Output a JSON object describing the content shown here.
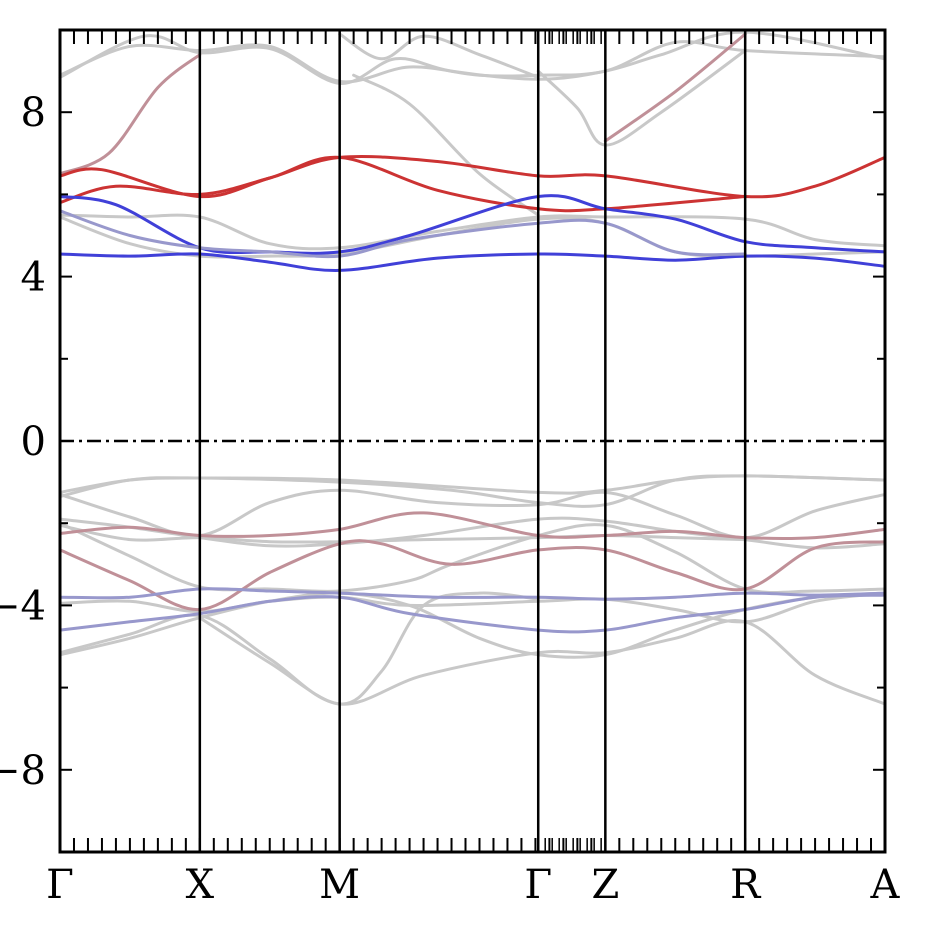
{
  "chart_data": {
    "type": "line",
    "title": "",
    "xlabel": "",
    "ylabel": "",
    "ylim": [
      -10,
      10
    ],
    "xlim": [
      0,
      5.9
    ],
    "y_ticks": [
      -8,
      -4,
      0,
      4,
      8
    ],
    "y_tick_labels": [
      "−8",
      "−4",
      "0",
      "4",
      "8"
    ],
    "high_symmetry_points": [
      {
        "label": "Γ",
        "k": 0.0
      },
      {
        "label": "X",
        "k": 1.0
      },
      {
        "label": "M",
        "k": 2.0
      },
      {
        "label": "Γ",
        "k": 3.42
      },
      {
        "label": "Z",
        "k": 3.9
      },
      {
        "label": "R",
        "k": 4.9
      },
      {
        "label": "A",
        "k": 5.9
      }
    ],
    "fermi_level": 0,
    "colors": {
      "neutral": "#c8c8c8",
      "red": "#cc3333",
      "blue": "#4040d8",
      "pink": "#c09098",
      "lavender": "#9898cc"
    },
    "series": [
      {
        "color": "#c8c8c8",
        "points": [
          [
            0,
            8.9
          ],
          [
            0.5,
            9.6
          ],
          [
            1,
            9.5
          ],
          [
            1.5,
            9.6
          ],
          [
            2,
            8.75
          ],
          [
            2.5,
            9.1
          ],
          [
            3.0,
            8.9
          ],
          [
            3.42,
            8.9
          ],
          [
            3.9,
            9.0
          ],
          [
            4.4,
            9.7
          ],
          [
            4.9,
            9.5
          ],
          [
            5.9,
            9.35
          ]
        ]
      },
      {
        "color": "#c8c8c8",
        "points": [
          [
            0,
            8.85
          ],
          [
            0.6,
            9.85
          ],
          [
            1,
            9.45
          ],
          [
            1.5,
            9.55
          ],
          [
            2,
            8.7
          ],
          [
            2.4,
            9.3
          ],
          [
            2.8,
            9.0
          ],
          [
            3.42,
            8.8
          ],
          [
            3.9,
            9.0
          ],
          [
            4.3,
            9.4
          ],
          [
            4.9,
            9.95
          ],
          [
            5.9,
            9.3
          ]
        ]
      },
      {
        "color": "#c8c8c8",
        "points": [
          [
            2,
            9.9
          ],
          [
            2.3,
            9.3
          ],
          [
            2.6,
            9.85
          ],
          [
            3.0,
            9.4
          ],
          [
            3.42,
            8.85
          ]
        ]
      },
      {
        "color": "#c8c8c8",
        "points": [
          [
            2.1,
            8.9
          ],
          [
            2.5,
            8.2
          ],
          [
            3.0,
            6.5
          ],
          [
            3.42,
            5.5
          ]
        ]
      },
      {
        "color": "#c8c8c8",
        "points": [
          [
            3.42,
            9.0
          ],
          [
            3.7,
            8.1
          ],
          [
            3.9,
            7.2
          ],
          [
            4.3,
            8.0
          ],
          [
            4.9,
            9.5
          ]
        ]
      },
      {
        "color": "#c09098",
        "points": [
          [
            0,
            6.5
          ],
          [
            0.35,
            7.0
          ],
          [
            0.7,
            8.6
          ],
          [
            1.0,
            9.4
          ]
        ]
      },
      {
        "color": "#c09098",
        "points": [
          [
            3.9,
            7.3
          ],
          [
            4.4,
            8.5
          ],
          [
            4.9,
            9.9
          ]
        ]
      },
      {
        "color": "#cc3333",
        "points": [
          [
            0,
            6.45
          ],
          [
            0.3,
            6.6
          ],
          [
            1,
            5.95
          ],
          [
            1.5,
            6.4
          ],
          [
            2,
            6.9
          ],
          [
            2.7,
            6.8
          ],
          [
            3.42,
            6.45
          ],
          [
            3.9,
            6.45
          ],
          [
            4.9,
            5.95
          ],
          [
            5.4,
            6.2
          ],
          [
            5.9,
            6.9
          ]
        ]
      },
      {
        "color": "#cc3333",
        "points": [
          [
            0,
            5.8
          ],
          [
            0.4,
            6.2
          ],
          [
            1,
            6.0
          ],
          [
            1.5,
            6.4
          ],
          [
            2,
            6.9
          ],
          [
            2.7,
            6.1
          ],
          [
            3.42,
            5.65
          ],
          [
            3.9,
            5.65
          ],
          [
            4.9,
            5.95
          ]
        ]
      },
      {
        "color": "#4040d8",
        "points": [
          [
            0,
            5.95
          ],
          [
            0.4,
            5.75
          ],
          [
            1,
            4.7
          ],
          [
            1.5,
            4.6
          ],
          [
            2,
            4.6
          ],
          [
            2.5,
            5.0
          ],
          [
            3.42,
            5.95
          ],
          [
            3.9,
            5.65
          ],
          [
            4.4,
            5.4
          ],
          [
            4.9,
            4.85
          ],
          [
            5.4,
            4.7
          ],
          [
            5.9,
            4.6
          ]
        ]
      },
      {
        "color": "#4040d8",
        "points": [
          [
            0,
            4.55
          ],
          [
            0.5,
            4.5
          ],
          [
            1,
            4.55
          ],
          [
            1.5,
            4.35
          ],
          [
            2,
            4.15
          ],
          [
            2.7,
            4.45
          ],
          [
            3.42,
            4.55
          ],
          [
            3.9,
            4.5
          ],
          [
            4.4,
            4.4
          ],
          [
            4.9,
            4.5
          ],
          [
            5.4,
            4.45
          ],
          [
            5.9,
            4.25
          ]
        ]
      },
      {
        "color": "#c8c8c8",
        "points": [
          [
            0,
            5.5
          ],
          [
            0.5,
            5.45
          ],
          [
            1,
            5.45
          ],
          [
            1.5,
            4.8
          ],
          [
            2,
            4.7
          ],
          [
            2.7,
            5.1
          ],
          [
            3.42,
            5.45
          ],
          [
            3.9,
            5.45
          ],
          [
            4.9,
            5.4
          ],
          [
            5.4,
            4.9
          ],
          [
            5.9,
            4.75
          ]
        ]
      },
      {
        "color": "#c8c8c8",
        "points": [
          [
            0,
            5.45
          ],
          [
            0.5,
            4.8
          ],
          [
            1,
            4.5
          ],
          [
            1.5,
            4.5
          ],
          [
            2,
            4.55
          ],
          [
            2.7,
            5.0
          ],
          [
            3.42,
            5.4
          ],
          [
            3.9,
            5.3
          ],
          [
            4.4,
            4.6
          ],
          [
            4.9,
            4.5
          ],
          [
            5.4,
            4.55
          ],
          [
            5.9,
            4.6
          ]
        ]
      },
      {
        "color": "#9898cc",
        "points": [
          [
            0,
            5.6
          ],
          [
            0.5,
            5.0
          ],
          [
            1,
            4.7
          ],
          [
            1.5,
            4.6
          ],
          [
            2,
            4.5
          ],
          [
            2.5,
            4.9
          ],
          [
            3.42,
            5.3
          ],
          [
            3.9,
            5.3
          ],
          [
            4.4,
            4.6
          ],
          [
            4.9,
            4.55
          ]
        ]
      },
      {
        "color": "#c8c8c8",
        "points": [
          [
            0,
            -1.25
          ],
          [
            0.5,
            -0.95
          ],
          [
            1,
            -0.9
          ],
          [
            2,
            -0.95
          ],
          [
            3.42,
            -1.25
          ],
          [
            3.9,
            -1.2
          ],
          [
            4.4,
            -0.95
          ],
          [
            4.9,
            -0.85
          ],
          [
            5.9,
            -0.95
          ]
        ]
      },
      {
        "color": "#c8c8c8",
        "points": [
          [
            0,
            -1.35
          ],
          [
            0.5,
            -0.95
          ],
          [
            1,
            -0.9
          ],
          [
            2,
            -1.0
          ],
          [
            2.8,
            -1.2
          ],
          [
            3.42,
            -1.5
          ],
          [
            3.9,
            -1.55
          ],
          [
            4.4,
            -0.95
          ],
          [
            4.9,
            -0.85
          ],
          [
            5.9,
            -0.95
          ]
        ]
      },
      {
        "color": "#c8c8c8",
        "points": [
          [
            0,
            -1.3
          ],
          [
            0.5,
            -1.85
          ],
          [
            1,
            -2.3
          ],
          [
            1.5,
            -1.5
          ],
          [
            2,
            -1.2
          ],
          [
            2.7,
            -1.5
          ],
          [
            3.42,
            -1.55
          ],
          [
            3.9,
            -1.25
          ],
          [
            4.4,
            -1.8
          ],
          [
            4.9,
            -2.35
          ],
          [
            5.4,
            -1.7
          ],
          [
            5.9,
            -1.3
          ]
        ]
      },
      {
        "color": "#c8c8c8",
        "points": [
          [
            0,
            -1.9
          ],
          [
            0.5,
            -2.1
          ],
          [
            1,
            -2.35
          ],
          [
            1.5,
            -2.55
          ],
          [
            2,
            -2.5
          ],
          [
            2.6,
            -2.3
          ],
          [
            3.42,
            -1.9
          ],
          [
            3.9,
            -1.95
          ],
          [
            4.4,
            -2.2
          ],
          [
            4.9,
            -2.4
          ],
          [
            5.4,
            -2.6
          ],
          [
            5.9,
            -2.5
          ]
        ]
      },
      {
        "color": "#c09098",
        "points": [
          [
            0,
            -2.25
          ],
          [
            0.5,
            -2.1
          ],
          [
            1,
            -2.3
          ],
          [
            1.5,
            -2.3
          ],
          [
            2,
            -2.15
          ],
          [
            2.6,
            -1.75
          ],
          [
            3.42,
            -2.3
          ],
          [
            3.9,
            -2.3
          ],
          [
            4.4,
            -2.2
          ],
          [
            4.9,
            -2.35
          ],
          [
            5.4,
            -2.35
          ],
          [
            5.9,
            -2.15
          ]
        ]
      },
      {
        "color": "#c8c8c8",
        "points": [
          [
            0,
            -2.05
          ],
          [
            0.5,
            -2.4
          ],
          [
            1,
            -2.35
          ],
          [
            1.5,
            -2.45
          ],
          [
            2,
            -2.45
          ],
          [
            2.6,
            -2.4
          ],
          [
            3.42,
            -2.35
          ],
          [
            3.9,
            -2.3
          ],
          [
            4.4,
            -2.35
          ],
          [
            4.9,
            -2.4
          ]
        ]
      },
      {
        "color": "#c09098",
        "points": [
          [
            0,
            -2.65
          ],
          [
            0.5,
            -3.4
          ],
          [
            1,
            -4.1
          ],
          [
            1.5,
            -3.2
          ],
          [
            2,
            -2.5
          ],
          [
            2.3,
            -2.5
          ],
          [
            2.8,
            -3.0
          ],
          [
            3.42,
            -2.65
          ],
          [
            3.9,
            -2.65
          ],
          [
            4.4,
            -3.2
          ],
          [
            4.9,
            -3.6
          ],
          [
            5.4,
            -2.6
          ],
          [
            5.9,
            -2.45
          ]
        ]
      },
      {
        "color": "#c8c8c8",
        "points": [
          [
            0,
            -2.0
          ],
          [
            0.5,
            -2.8
          ],
          [
            1,
            -3.55
          ],
          [
            1.5,
            -3.6
          ],
          [
            2,
            -3.65
          ],
          [
            2.5,
            -3.4
          ],
          [
            2.8,
            -3.0
          ],
          [
            3.42,
            -2.3
          ],
          [
            3.9,
            -2.05
          ],
          [
            4.4,
            -2.7
          ],
          [
            4.9,
            -3.6
          ],
          [
            5.4,
            -3.65
          ],
          [
            5.9,
            -3.6
          ]
        ]
      },
      {
        "color": "#9898cc",
        "points": [
          [
            0,
            -3.8
          ],
          [
            0.5,
            -3.8
          ],
          [
            1,
            -3.6
          ],
          [
            1.5,
            -3.65
          ],
          [
            2,
            -3.7
          ],
          [
            2.7,
            -3.8
          ],
          [
            3.42,
            -3.8
          ],
          [
            3.9,
            -3.85
          ],
          [
            4.4,
            -3.8
          ],
          [
            4.9,
            -3.7
          ],
          [
            5.4,
            -3.75
          ],
          [
            5.9,
            -3.7
          ]
        ]
      },
      {
        "color": "#9898cc",
        "points": [
          [
            0,
            -4.6
          ],
          [
            0.5,
            -4.4
          ],
          [
            1,
            -4.2
          ],
          [
            1.5,
            -3.9
          ],
          [
            2,
            -3.8
          ],
          [
            2.5,
            -4.2
          ],
          [
            3.42,
            -4.6
          ],
          [
            3.9,
            -4.6
          ],
          [
            4.4,
            -4.3
          ],
          [
            4.9,
            -4.1
          ],
          [
            5.4,
            -3.8
          ],
          [
            5.9,
            -3.75
          ]
        ]
      },
      {
        "color": "#c8c8c8",
        "points": [
          [
            0,
            -3.95
          ],
          [
            0.5,
            -3.9
          ],
          [
            1,
            -4.15
          ],
          [
            1.5,
            -3.9
          ],
          [
            2,
            -3.8
          ],
          [
            2.5,
            -4.0
          ],
          [
            3.42,
            -3.9
          ],
          [
            3.9,
            -3.85
          ],
          [
            4.4,
            -4.1
          ],
          [
            4.9,
            -4.4
          ],
          [
            5.4,
            -3.9
          ],
          [
            5.9,
            -3.7
          ]
        ]
      },
      {
        "color": "#c8c8c8",
        "points": [
          [
            0,
            -5.2
          ],
          [
            0.5,
            -4.8
          ],
          [
            1,
            -4.3
          ],
          [
            1.5,
            -3.9
          ],
          [
            2,
            -3.7
          ],
          [
            2.5,
            -4.0
          ],
          [
            3.0,
            -4.8
          ],
          [
            3.42,
            -5.2
          ],
          [
            3.9,
            -5.2
          ],
          [
            4.4,
            -4.6
          ],
          [
            4.9,
            -4.1
          ],
          [
            5.4,
            -3.8
          ],
          [
            5.9,
            -3.7
          ]
        ]
      },
      {
        "color": "#c8c8c8",
        "points": [
          [
            0,
            -5.15
          ],
          [
            0.5,
            -4.7
          ],
          [
            1,
            -4.25
          ],
          [
            1.5,
            -5.3
          ],
          [
            2,
            -6.4
          ],
          [
            2.6,
            -5.7
          ],
          [
            3.42,
            -5.15
          ],
          [
            3.9,
            -5.15
          ],
          [
            4.4,
            -4.8
          ],
          [
            4.9,
            -4.4
          ],
          [
            5.4,
            -5.7
          ],
          [
            5.9,
            -6.4
          ]
        ]
      },
      {
        "color": "#c8c8c8",
        "points": [
          [
            1,
            -4.3
          ],
          [
            1.5,
            -5.4
          ],
          [
            2,
            -6.4
          ],
          [
            2.3,
            -5.6
          ],
          [
            2.6,
            -4.0
          ],
          [
            3.0,
            -3.7
          ],
          [
            3.42,
            -3.85
          ]
        ]
      }
    ]
  }
}
